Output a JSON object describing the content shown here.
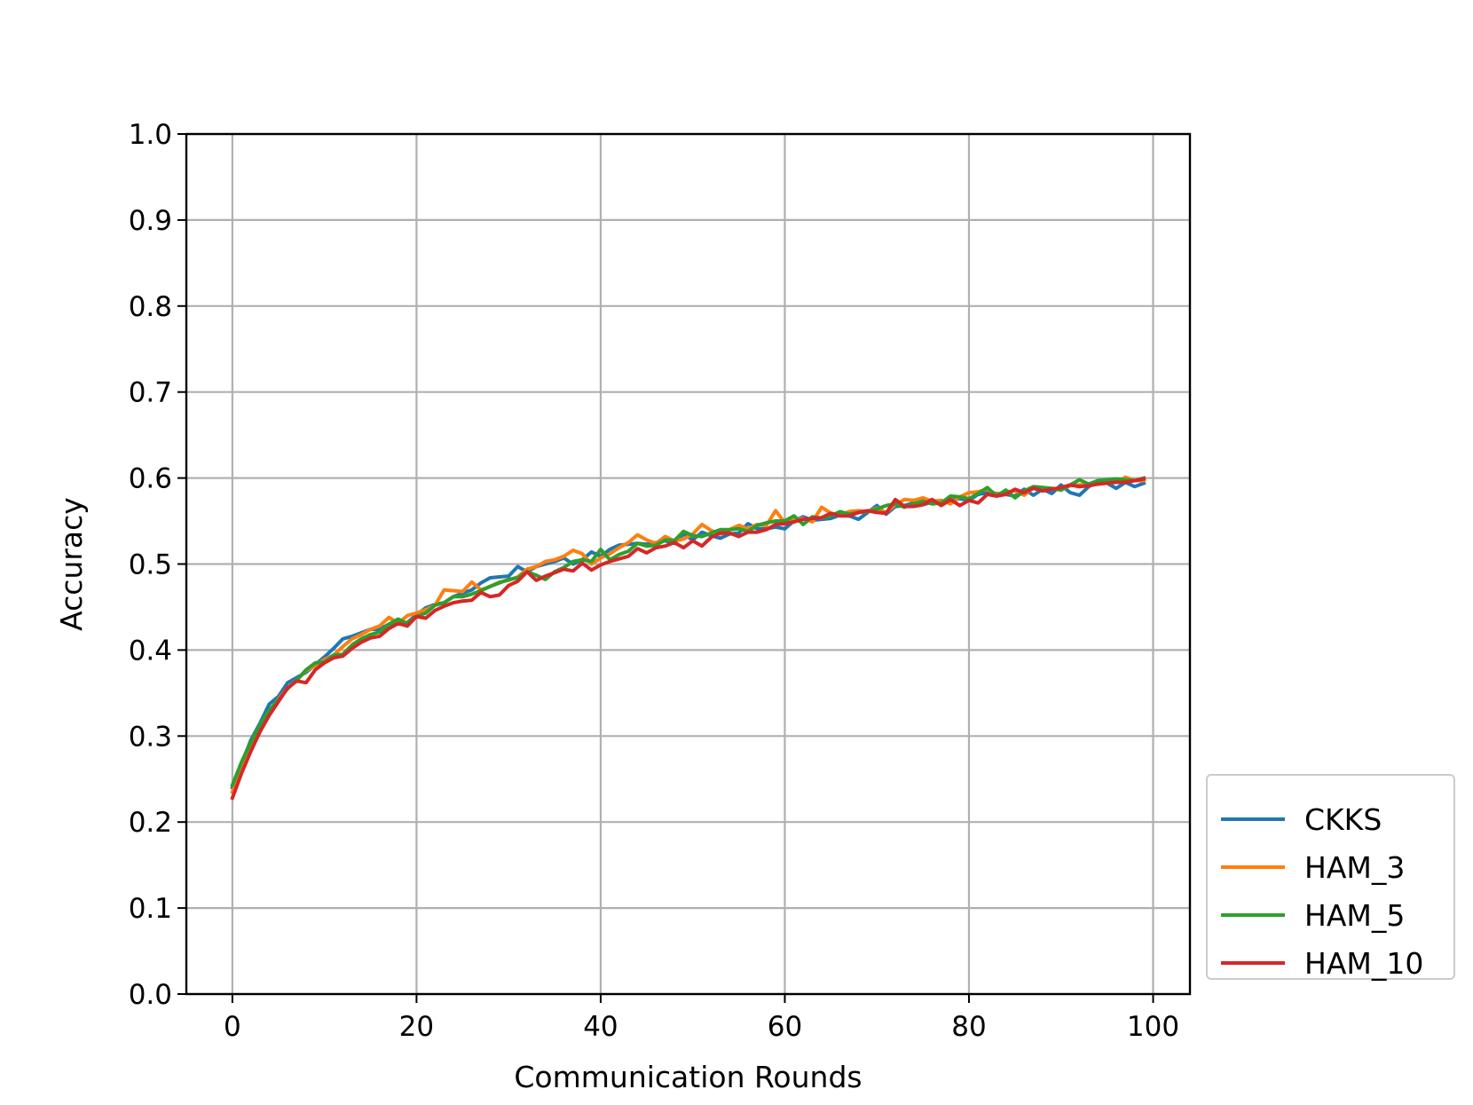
{
  "chart_data": {
    "type": "line",
    "title": "",
    "xlabel": "Communication Rounds",
    "ylabel": "Accuracy",
    "xlim": [
      -5,
      104
    ],
    "ylim": [
      0.0,
      1.0
    ],
    "xticks": [
      0,
      20,
      40,
      60,
      80,
      100
    ],
    "yticks": [
      0.0,
      0.1,
      0.2,
      0.3,
      0.4,
      0.5,
      0.6,
      0.7,
      0.8,
      0.9,
      1.0
    ],
    "xtick_labels": [
      "0",
      "20",
      "40",
      "60",
      "80",
      "100"
    ],
    "ytick_labels": [
      "0.0",
      "0.1",
      "0.2",
      "0.3",
      "0.4",
      "0.5",
      "0.6",
      "0.7",
      "0.8",
      "0.9",
      "1.0"
    ],
    "grid": true,
    "legend_position": "outside lower right",
    "series": [
      {
        "name": "CKKS",
        "color": "#1f77b4",
        "x": [
          0,
          1,
          2,
          3,
          4,
          5,
          6,
          7,
          8,
          9,
          10,
          11,
          12,
          13,
          14,
          15,
          16,
          17,
          18,
          19,
          20,
          21,
          22,
          23,
          24,
          25,
          26,
          27,
          28,
          29,
          30,
          31,
          32,
          33,
          34,
          35,
          36,
          37,
          38,
          39,
          40,
          41,
          42,
          43,
          44,
          45,
          46,
          47,
          48,
          49,
          50,
          51,
          52,
          53,
          54,
          55,
          56,
          57,
          58,
          59,
          60,
          61,
          62,
          63,
          64,
          65,
          66,
          67,
          68,
          69,
          70,
          71,
          72,
          73,
          74,
          75,
          76,
          77,
          78,
          79,
          80,
          81,
          82,
          83,
          84,
          85,
          86,
          87,
          88,
          89,
          90,
          91,
          92,
          93,
          94,
          95,
          96,
          97,
          98,
          99
        ],
        "y": [
          0.24,
          0.268,
          0.295,
          0.315,
          0.337,
          0.346,
          0.362,
          0.368,
          0.374,
          0.383,
          0.392,
          0.402,
          0.413,
          0.416,
          0.42,
          0.424,
          0.424,
          0.43,
          0.431,
          0.432,
          0.441,
          0.449,
          0.453,
          0.455,
          0.462,
          0.466,
          0.47,
          0.478,
          0.484,
          0.485,
          0.486,
          0.497,
          0.491,
          0.497,
          0.5,
          0.503,
          0.507,
          0.5,
          0.505,
          0.514,
          0.509,
          0.517,
          0.522,
          0.523,
          0.524,
          0.523,
          0.525,
          0.527,
          0.524,
          0.535,
          0.528,
          0.537,
          0.533,
          0.53,
          0.535,
          0.536,
          0.547,
          0.541,
          0.541,
          0.543,
          0.541,
          0.55,
          0.555,
          0.551,
          0.552,
          0.553,
          0.557,
          0.556,
          0.552,
          0.56,
          0.568,
          0.558,
          0.567,
          0.568,
          0.571,
          0.569,
          0.572,
          0.571,
          0.574,
          0.576,
          0.574,
          0.581,
          0.583,
          0.582,
          0.581,
          0.579,
          0.587,
          0.58,
          0.587,
          0.582,
          0.592,
          0.583,
          0.58,
          0.59,
          0.597,
          0.594,
          0.588,
          0.595,
          0.59,
          0.594
        ]
      },
      {
        "name": "HAM_3",
        "color": "#ff7f0e",
        "x": [
          0,
          1,
          2,
          3,
          4,
          5,
          6,
          7,
          8,
          9,
          10,
          11,
          12,
          13,
          14,
          15,
          16,
          17,
          18,
          19,
          20,
          21,
          22,
          23,
          24,
          25,
          26,
          27,
          28,
          29,
          30,
          31,
          32,
          33,
          34,
          35,
          36,
          37,
          38,
          39,
          40,
          41,
          42,
          43,
          44,
          45,
          46,
          47,
          48,
          49,
          50,
          51,
          52,
          53,
          54,
          55,
          56,
          57,
          58,
          59,
          60,
          61,
          62,
          63,
          64,
          65,
          66,
          67,
          68,
          69,
          70,
          71,
          72,
          73,
          74,
          75,
          76,
          77,
          78,
          79,
          80,
          81,
          82,
          83,
          84,
          85,
          86,
          87,
          88,
          89,
          90,
          91,
          92,
          93,
          94,
          95,
          96,
          97,
          98,
          99
        ],
        "y": [
          0.235,
          0.262,
          0.29,
          0.31,
          0.328,
          0.343,
          0.356,
          0.365,
          0.376,
          0.382,
          0.389,
          0.394,
          0.404,
          0.413,
          0.418,
          0.424,
          0.428,
          0.438,
          0.431,
          0.44,
          0.443,
          0.447,
          0.452,
          0.47,
          0.469,
          0.468,
          0.479,
          0.47,
          0.474,
          0.479,
          0.481,
          0.485,
          0.494,
          0.497,
          0.503,
          0.505,
          0.509,
          0.516,
          0.512,
          0.5,
          0.507,
          0.512,
          0.519,
          0.525,
          0.534,
          0.528,
          0.524,
          0.532,
          0.527,
          0.529,
          0.535,
          0.546,
          0.539,
          0.535,
          0.54,
          0.545,
          0.541,
          0.546,
          0.545,
          0.562,
          0.548,
          0.551,
          0.553,
          0.549,
          0.566,
          0.559,
          0.557,
          0.561,
          0.562,
          0.561,
          0.565,
          0.56,
          0.569,
          0.575,
          0.574,
          0.577,
          0.573,
          0.574,
          0.57,
          0.578,
          0.583,
          0.584,
          0.587,
          0.581,
          0.584,
          0.585,
          0.58,
          0.589,
          0.586,
          0.588,
          0.587,
          0.591,
          0.592,
          0.593,
          0.593,
          0.594,
          0.595,
          0.601,
          0.597,
          0.597
        ]
      },
      {
        "name": "HAM_5",
        "color": "#2ca02c",
        "x": [
          0,
          1,
          2,
          3,
          4,
          5,
          6,
          7,
          8,
          9,
          10,
          11,
          12,
          13,
          14,
          15,
          16,
          17,
          18,
          19,
          20,
          21,
          22,
          23,
          24,
          25,
          26,
          27,
          28,
          29,
          30,
          31,
          32,
          33,
          34,
          35,
          36,
          37,
          38,
          39,
          40,
          41,
          42,
          43,
          44,
          45,
          46,
          47,
          48,
          49,
          50,
          51,
          52,
          53,
          54,
          55,
          56,
          57,
          58,
          59,
          60,
          61,
          62,
          63,
          64,
          65,
          66,
          67,
          68,
          69,
          70,
          71,
          72,
          73,
          74,
          75,
          76,
          77,
          78,
          79,
          80,
          81,
          82,
          83,
          84,
          85,
          86,
          87,
          88,
          89,
          90,
          91,
          92,
          93,
          94,
          95,
          96,
          97,
          98,
          99
        ],
        "y": [
          0.243,
          0.27,
          0.293,
          0.313,
          0.33,
          0.342,
          0.355,
          0.365,
          0.377,
          0.385,
          0.386,
          0.394,
          0.395,
          0.406,
          0.413,
          0.418,
          0.421,
          0.43,
          0.436,
          0.431,
          0.439,
          0.443,
          0.452,
          0.455,
          0.462,
          0.462,
          0.465,
          0.469,
          0.474,
          0.478,
          0.482,
          0.484,
          0.491,
          0.487,
          0.482,
          0.491,
          0.496,
          0.503,
          0.505,
          0.503,
          0.517,
          0.505,
          0.511,
          0.515,
          0.524,
          0.521,
          0.522,
          0.528,
          0.527,
          0.538,
          0.533,
          0.532,
          0.536,
          0.54,
          0.54,
          0.541,
          0.538,
          0.545,
          0.548,
          0.55,
          0.55,
          0.556,
          0.546,
          0.555,
          0.553,
          0.556,
          0.561,
          0.558,
          0.56,
          0.561,
          0.564,
          0.568,
          0.57,
          0.566,
          0.57,
          0.573,
          0.57,
          0.571,
          0.579,
          0.578,
          0.576,
          0.582,
          0.589,
          0.579,
          0.586,
          0.577,
          0.585,
          0.59,
          0.589,
          0.588,
          0.586,
          0.592,
          0.598,
          0.593,
          0.597,
          0.598,
          0.599,
          0.598,
          0.597,
          0.6
        ]
      },
      {
        "name": "HAM_10",
        "color": "#d62728",
        "x": [
          0,
          1,
          2,
          3,
          4,
          5,
          6,
          7,
          8,
          9,
          10,
          11,
          12,
          13,
          14,
          15,
          16,
          17,
          18,
          19,
          20,
          21,
          22,
          23,
          24,
          25,
          26,
          27,
          28,
          29,
          30,
          31,
          32,
          33,
          34,
          35,
          36,
          37,
          38,
          39,
          40,
          41,
          42,
          43,
          44,
          45,
          46,
          47,
          48,
          49,
          50,
          51,
          52,
          53,
          54,
          55,
          56,
          57,
          58,
          59,
          60,
          61,
          62,
          63,
          64,
          65,
          66,
          67,
          68,
          69,
          70,
          71,
          72,
          73,
          74,
          75,
          76,
          77,
          78,
          79,
          80,
          81,
          82,
          83,
          84,
          85,
          86,
          87,
          88,
          89,
          90,
          91,
          92,
          93,
          94,
          95,
          96,
          97,
          98,
          99
        ],
        "y": [
          0.228,
          0.257,
          0.282,
          0.305,
          0.324,
          0.34,
          0.356,
          0.364,
          0.362,
          0.377,
          0.385,
          0.391,
          0.393,
          0.402,
          0.409,
          0.414,
          0.416,
          0.425,
          0.431,
          0.428,
          0.439,
          0.437,
          0.446,
          0.451,
          0.455,
          0.457,
          0.458,
          0.467,
          0.462,
          0.464,
          0.475,
          0.48,
          0.491,
          0.481,
          0.486,
          0.49,
          0.494,
          0.492,
          0.501,
          0.493,
          0.499,
          0.503,
          0.506,
          0.509,
          0.518,
          0.513,
          0.519,
          0.521,
          0.525,
          0.519,
          0.527,
          0.521,
          0.531,
          0.536,
          0.536,
          0.532,
          0.537,
          0.537,
          0.54,
          0.546,
          0.547,
          0.549,
          0.552,
          0.553,
          0.554,
          0.559,
          0.556,
          0.556,
          0.56,
          0.562,
          0.56,
          0.559,
          0.575,
          0.567,
          0.567,
          0.569,
          0.575,
          0.568,
          0.575,
          0.568,
          0.574,
          0.571,
          0.581,
          0.579,
          0.581,
          0.587,
          0.583,
          0.588,
          0.585,
          0.587,
          0.589,
          0.592,
          0.59,
          0.591,
          0.593,
          0.594,
          0.595,
          0.595,
          0.597,
          0.599
        ]
      }
    ]
  }
}
